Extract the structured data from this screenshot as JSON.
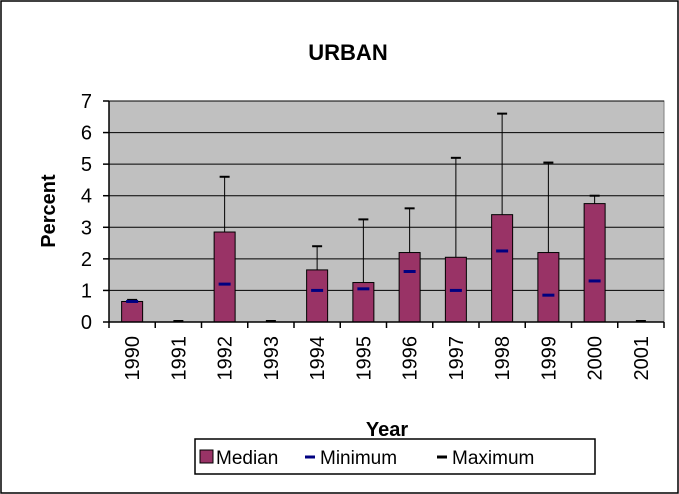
{
  "chart_data": {
    "type": "bar",
    "title": "URBAN",
    "xlabel": "Year",
    "ylabel": "Percent",
    "ylim": [
      0,
      7
    ],
    "yticks": [
      "0",
      "1",
      "2",
      "3",
      "4",
      "5",
      "6",
      "7"
    ],
    "grid": true,
    "legend_position": "bottom",
    "categories": [
      "1990",
      "1991",
      "1992",
      "1993",
      "1994",
      "1995",
      "1996",
      "1997",
      "1998",
      "1999",
      "2000",
      "2001"
    ],
    "series": [
      {
        "name": "Median",
        "values": [
          0.65,
          0,
          2.85,
          0,
          1.65,
          1.25,
          2.2,
          2.05,
          3.4,
          2.2,
          3.75,
          0
        ]
      },
      {
        "name": "Minimum",
        "values": [
          0.65,
          0,
          1.2,
          0,
          1.0,
          1.05,
          1.6,
          1.0,
          2.25,
          0.85,
          1.3,
          0
        ]
      },
      {
        "name": "Maximum",
        "values": [
          0.7,
          0,
          4.6,
          0,
          2.4,
          3.25,
          3.6,
          5.2,
          6.6,
          5.05,
          4.0,
          0
        ]
      }
    ],
    "colors": {
      "median": "#993366",
      "minimum": "#000080",
      "maximum": "#000000",
      "plot_background": "#c0c0c0",
      "grid": "#000000"
    }
  }
}
